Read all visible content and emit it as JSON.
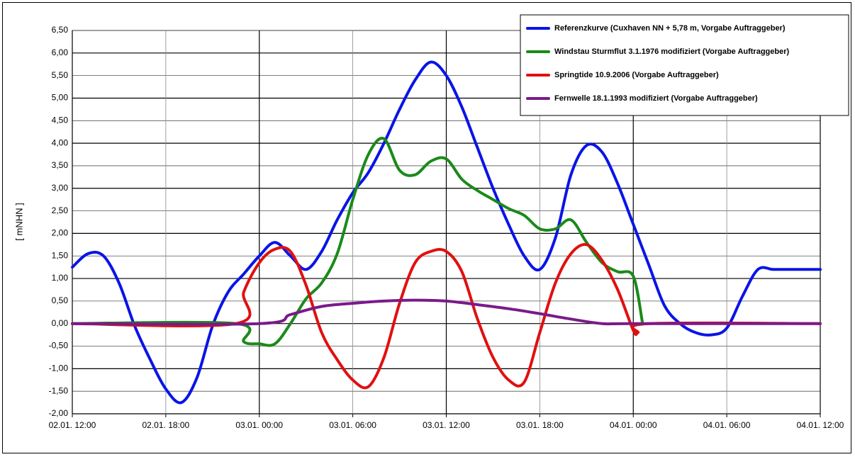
{
  "chart_data": {
    "type": "line",
    "title": "",
    "xlabel": "",
    "ylabel": "[ mNHN ]",
    "ylim": [
      -2.0,
      6.5
    ],
    "y_ticks": [
      -2.0,
      -1.5,
      -1.0,
      -0.5,
      0.0,
      0.5,
      1.0,
      1.5,
      2.0,
      2.5,
      3.0,
      3.5,
      4.0,
      4.5,
      5.0,
      5.5,
      6.0,
      6.5
    ],
    "y_tick_labels": [
      "-2,00",
      "-1,50",
      "-1,00",
      "-0,50",
      "0,00",
      "0,50",
      "1,00",
      "1,50",
      "2,00",
      "2,50",
      "3,00",
      "3,50",
      "4,00",
      "4,50",
      "5,00",
      "5,50",
      "6,00",
      "6,50"
    ],
    "xlim": [
      "02.01. 12:00",
      "04.01. 12:00"
    ],
    "x_tick_labels": [
      "02.01. 12:00",
      "02.01. 18:00",
      "03.01. 00:00",
      "03.01. 06:00",
      "03.01. 12:00",
      "03.01. 18:00",
      "04.01. 00:00",
      "04.01. 06:00",
      "04.01. 12:00"
    ],
    "x_unit": "hours",
    "grid": true,
    "legend_position": "top-right",
    "series": [
      {
        "name": "Referenzkurve (Cuxhaven NN + 5,78 m, Vorgabe Auftraggeber)",
        "color": "#0a14e6",
        "x": [
          0,
          1,
          2,
          3,
          4,
          5,
          6,
          7,
          8,
          9,
          10,
          11,
          12,
          13,
          14,
          15,
          16,
          17,
          18,
          19,
          20,
          21,
          22,
          23,
          24,
          25,
          26,
          27,
          28,
          29,
          30,
          31,
          32,
          33,
          34,
          35,
          36,
          37,
          38,
          39,
          40,
          41,
          42,
          43,
          44,
          45,
          46,
          47,
          48
        ],
        "y": [
          1.25,
          1.55,
          1.5,
          0.9,
          -0.05,
          -0.8,
          -1.45,
          -1.75,
          -1.2,
          -0.05,
          0.7,
          1.1,
          1.5,
          1.8,
          1.5,
          1.2,
          1.6,
          2.3,
          2.9,
          3.35,
          4.0,
          4.75,
          5.4,
          5.8,
          5.5,
          4.8,
          3.9,
          3.0,
          2.2,
          1.5,
          1.2,
          1.9,
          3.3,
          3.95,
          3.8,
          3.1,
          2.2,
          1.3,
          0.4,
          0.0,
          -0.2,
          -0.25,
          -0.1,
          0.6,
          1.2,
          1.2,
          1.2,
          1.2,
          1.2
        ]
      },
      {
        "name": "Windstau Sturmflut 3.1.1976 modifiziert (Vorgabe Auftraggeber)",
        "color": "#1a8a1a",
        "x": [
          0,
          10.5,
          11,
          12,
          13,
          14,
          15,
          16,
          17,
          18,
          19,
          20,
          21,
          22,
          23,
          24,
          25,
          26,
          27,
          28,
          29,
          30,
          31,
          32,
          33,
          34,
          35,
          36,
          36.6
        ],
        "y": [
          0.0,
          0.0,
          -0.4,
          -0.45,
          -0.45,
          0.0,
          0.55,
          0.9,
          1.55,
          2.75,
          3.75,
          4.1,
          3.4,
          3.3,
          3.6,
          3.65,
          3.2,
          2.95,
          2.75,
          2.55,
          2.4,
          2.1,
          2.1,
          2.3,
          1.8,
          1.35,
          1.15,
          1.05,
          0.0
        ]
      },
      {
        "name": "Springtide 10.9.2006 (Vorgabe Auftraggeber)",
        "color": "#e01010",
        "x": [
          0,
          10.5,
          11,
          12,
          13,
          14,
          15,
          16,
          17,
          18,
          19,
          20,
          21,
          22,
          23,
          24,
          25,
          26,
          27,
          28,
          29,
          30,
          31,
          32,
          33,
          34,
          35,
          36,
          36.3,
          37,
          48
        ],
        "y": [
          0.0,
          0.0,
          0.7,
          1.35,
          1.65,
          1.6,
          0.85,
          -0.2,
          -0.8,
          -1.25,
          -1.4,
          -0.75,
          0.45,
          1.35,
          1.6,
          1.6,
          1.15,
          0.1,
          -0.75,
          -1.25,
          -1.3,
          -0.2,
          0.9,
          1.55,
          1.75,
          1.4,
          0.75,
          -0.15,
          -0.2,
          0.0,
          0.0
        ]
      },
      {
        "name": "Fernwelle 18.1.1993 modifiziert (Vorgabe Auftraggeber)",
        "color": "#7a1a8a",
        "x": [
          0,
          12,
          14,
          16,
          18,
          20,
          22,
          24,
          26,
          28,
          30,
          32,
          34,
          36,
          48
        ],
        "y": [
          0.0,
          0.0,
          0.2,
          0.38,
          0.45,
          0.5,
          0.52,
          0.5,
          0.42,
          0.33,
          0.22,
          0.1,
          0.0,
          0.0,
          0.0
        ]
      }
    ]
  }
}
